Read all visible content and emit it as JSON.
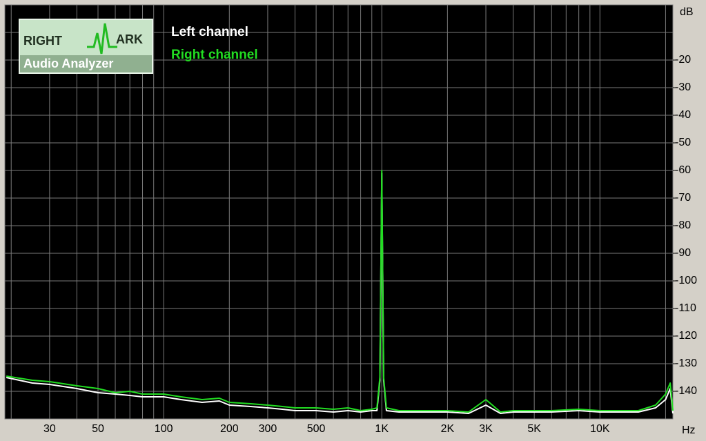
{
  "chart_data": {
    "type": "line",
    "x_label": "Hz",
    "y_label": "dB",
    "log_x": true,
    "grid": true,
    "xlim": [
      18.7,
      21600
    ],
    "ylim": [
      -150,
      0
    ],
    "xticks": [
      30,
      50,
      100,
      200,
      300,
      500,
      {
        "value": 1000,
        "label": "1K"
      },
      {
        "value": 2000,
        "label": "2K"
      },
      {
        "value": 3000,
        "label": "3K"
      },
      {
        "value": 5000,
        "label": "5K"
      },
      {
        "value": 10000,
        "label": "10K"
      }
    ],
    "x_minor_ticks": [
      20,
      40,
      60,
      70,
      80,
      90,
      400,
      600,
      700,
      800,
      900,
      4000,
      6000,
      7000,
      8000,
      9000,
      20000
    ],
    "yticks": [
      -20,
      -30,
      -40,
      -50,
      -60,
      -70,
      -80,
      -90,
      -100,
      -110,
      -120,
      -130,
      -140
    ],
    "y_minor_ticks": [
      -10
    ],
    "x": [
      19,
      25,
      30,
      40,
      50,
      60,
      70,
      80,
      100,
      120,
      150,
      180,
      200,
      250,
      300,
      350,
      400,
      500,
      600,
      700,
      800,
      900,
      950,
      980,
      1000,
      1020,
      1050,
      1200,
      1500,
      2000,
      2500,
      3000,
      3500,
      4000,
      5000,
      6000,
      8000,
      10000,
      12000,
      15000,
      18000,
      20000,
      21000,
      21600
    ],
    "series": [
      {
        "name": "Left channel",
        "color": "#ffffff",
        "values": [
          -135,
          -137,
          -137.5,
          -139,
          -140.5,
          -141,
          -141.5,
          -142,
          -142,
          -143,
          -144,
          -143.5,
          -145,
          -145.5,
          -146,
          -146.5,
          -147,
          -147,
          -147.5,
          -147,
          -147.5,
          -147,
          -147,
          -136,
          -61,
          -136,
          -147,
          -147.5,
          -147.5,
          -147.5,
          -148,
          -145,
          -148,
          -147.5,
          -147.5,
          -147.5,
          -147,
          -147.5,
          -147.5,
          -147.5,
          -146,
          -143,
          -139,
          -148
        ]
      },
      {
        "name": "Right channel",
        "color": "#22dd22",
        "values": [
          -134.5,
          -136,
          -136.5,
          -138,
          -139,
          -140.5,
          -140,
          -141,
          -141,
          -142,
          -143,
          -142.5,
          -144,
          -144.5,
          -145,
          -145.5,
          -146,
          -146,
          -146.5,
          -146,
          -147,
          -146.5,
          -146,
          -135,
          -60,
          -135,
          -146,
          -147,
          -147,
          -147,
          -147.5,
          -143,
          -147.5,
          -147,
          -147,
          -147,
          -146.5,
          -147,
          -147,
          -147,
          -145,
          -141,
          -137,
          -147
        ]
      }
    ]
  },
  "logo": {
    "left": "RIGHT",
    "right": "ARK",
    "sub": "Audio Analyzer"
  }
}
